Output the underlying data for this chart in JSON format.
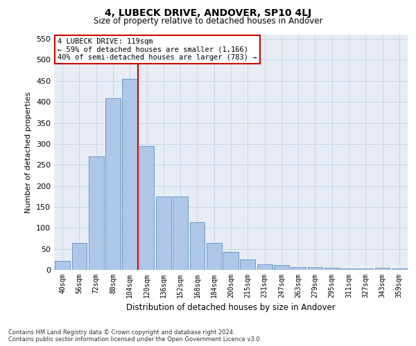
{
  "title": "4, LUBECK DRIVE, ANDOVER, SP10 4LJ",
  "subtitle": "Size of property relative to detached houses in Andover",
  "xlabel": "Distribution of detached houses by size in Andover",
  "ylabel": "Number of detached properties",
  "footer_line1": "Contains HM Land Registry data © Crown copyright and database right 2024.",
  "footer_line2": "Contains public sector information licensed under the Open Government Licence v3.0.",
  "categories": [
    "40sqm",
    "56sqm",
    "72sqm",
    "88sqm",
    "104sqm",
    "120sqm",
    "136sqm",
    "152sqm",
    "168sqm",
    "184sqm",
    "200sqm",
    "215sqm",
    "231sqm",
    "247sqm",
    "263sqm",
    "279sqm",
    "295sqm",
    "311sqm",
    "327sqm",
    "343sqm",
    "359sqm"
  ],
  "values": [
    22,
    65,
    270,
    408,
    455,
    295,
    175,
    175,
    113,
    65,
    43,
    25,
    14,
    11,
    7,
    7,
    5,
    4,
    3,
    5,
    3
  ],
  "bar_color": "#aec6e8",
  "bar_edge_color": "#5a8fc2",
  "grid_color": "#c8d4e8",
  "background_color": "#e8edf5",
  "vline_x_index": 5,
  "vline_color": "#cc0000",
  "annotation_title": "4 LUBECK DRIVE: 119sqm",
  "annotation_line1": "← 59% of detached houses are smaller (1,166)",
  "annotation_line2": "40% of semi-detached houses are larger (783) →",
  "annotation_box_color": "#ffffff",
  "annotation_box_edge": "#cc0000",
  "ylim": [
    0,
    560
  ],
  "yticks": [
    0,
    50,
    100,
    150,
    200,
    250,
    300,
    350,
    400,
    450,
    500,
    550
  ]
}
